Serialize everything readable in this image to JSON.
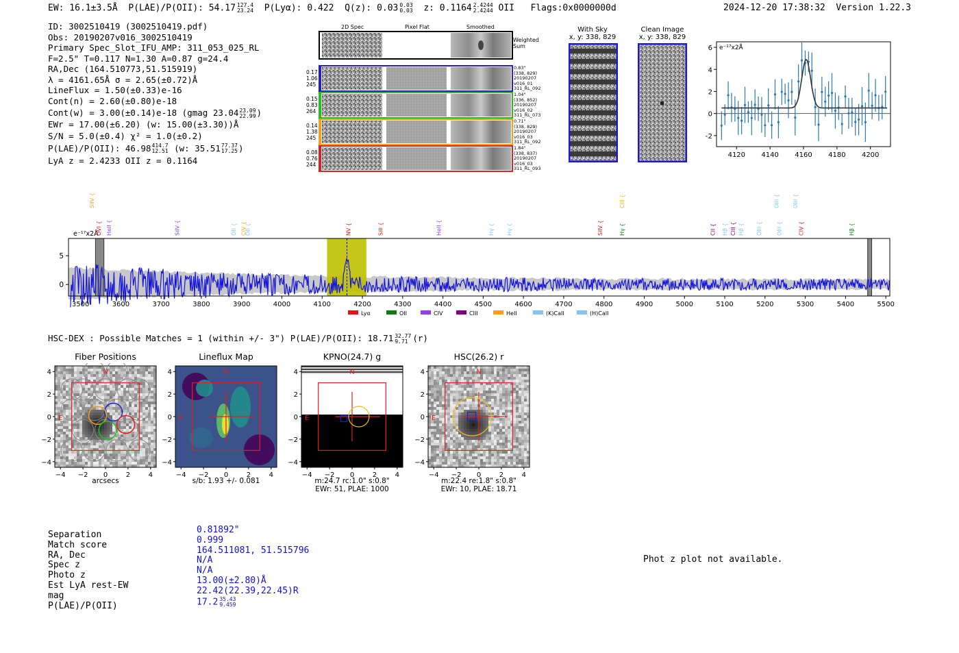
{
  "header": {
    "ew": "EW: 16.1±3.5Å",
    "plae": "P(LAE)/P(OII): 54.17",
    "plae_hi": "127.4",
    "plae_lo": "23.24",
    "plya": "P(Lyα): 0.422",
    "qz": "Q(z): 0.03",
    "qz_hi": "0.03",
    "qz_lo": "0.03",
    "z": "z: 0.1164",
    "z_hi": "2.4244",
    "z_lo": "2.4244",
    "z_tag": "OII",
    "flags": "Flags:0x0000000d",
    "datetime": "2024-12-20 17:38:32",
    "version": "Version 1.22.3"
  },
  "info": {
    "id": "ID: 3002510419 (3002510419.pdf)",
    "obs": "Obs: 20190207v016_3002510419",
    "primary": "Primary Spec_Slot_IFU_AMP: 311_053_025_RL",
    "params": "F=2.5\"  T=0.117  N=1.30  A=0.87  g=24.4",
    "radec": "RA,Dec (164.510773,51.515919)",
    "lambda": "λ = 4161.65Å  σ = 2.65(±0.72)Å",
    "lineflux": "LineFlux = 1.50(±0.33)e-16",
    "contn": "Cont(n) = 2.60(±0.80)e-18",
    "contw": "Cont(w) = 3.00(±0.14)e-18 (gmag 23.04",
    "contw_hi": "23.09",
    "contw_lo": "22.99",
    "contw_end": ")",
    "ewr": "EWr = 17.00(±6.20) (w: 15.00(±3.30))Å",
    "sn": "S/N = 5.0(±0.4)  χ² = 1.0(±0.2)",
    "plae": "P(LAE)/P(OII): 46.98",
    "plae_hi": "414.7",
    "plae_lo": "12.51",
    "plae_w": " (w: 35.51",
    "plae_w_hi": "77.37",
    "plae_w_lo": "17.25",
    "plae_w_end": ")",
    "lyaz": "LyA z = 2.4233  OII z = 0.1164"
  },
  "cutouts": {
    "col_2d": "2D Spec",
    "col_flat": "Pixel Flat",
    "col_smooth": "Smoothed",
    "weighted_sum": "Weighted Sum",
    "fibers": [
      {
        "left": [
          "0.17",
          "1.06",
          "245"
        ],
        "right": [
          "0.83\"",
          "(338, 829)",
          "20190207",
          "v016_01",
          "311_RL_092"
        ],
        "color": "#2020d0"
      },
      {
        "left": [
          "0.15",
          "0.83",
          "264"
        ],
        "right": [
          "1.04\"",
          "(336, 852)",
          "20190207",
          "v016_02",
          "311_RL_073"
        ],
        "color": "#20c020"
      },
      {
        "left": [
          "0.14",
          "1.38",
          "245"
        ],
        "right": [
          "0.71\"",
          "(338, 829)",
          "20190207",
          "v016_03",
          "311_RL_092"
        ],
        "color": "#f0a020"
      },
      {
        "left": [
          "0.08",
          "0.76",
          "244"
        ],
        "right": [
          "1.84\"",
          "(338, 837)",
          "20190207",
          "v016_03",
          "311_RL_093"
        ],
        "color": "#e02020"
      }
    ],
    "with_sky": "With Sky",
    "with_sky_xy": "x, y: 338, 829",
    "clean": "Clean Image",
    "clean_xy": "x, y: 338, 829"
  },
  "zoom_plot": {
    "unit": "e⁻¹⁷x2Å",
    "xticks": [
      "4120",
      "4140",
      "4160",
      "4180",
      "4200"
    ],
    "yticks": [
      "6",
      "4",
      "2",
      "0",
      "−2"
    ]
  },
  "spectrum": {
    "unit": "e⁻¹⁷x2Å",
    "yticks": [
      "5",
      "0"
    ],
    "xticks": [
      "3500",
      "3600",
      "3700",
      "3800",
      "3900",
      "4000",
      "4100",
      "4200",
      "4300",
      "4400",
      "4500",
      "4600",
      "4700",
      "4800",
      "4900",
      "5000",
      "5100",
      "5200",
      "5300",
      "5400",
      "5500"
    ],
    "legend": [
      "Lyα",
      "OII",
      "CIV",
      "CIII",
      "HeII",
      "(K)CaII",
      "(H)CaII"
    ],
    "legend_colors": [
      "#e81010",
      "#107c10",
      "#9040f0",
      "#800080",
      "#ffa020",
      "#80c8f0",
      "#80c8f0"
    ],
    "lines_top": [
      {
        "label": "SiIV",
        "color": "#ffa020"
      },
      {
        "label": "CIII",
        "color": "#ffa020"
      },
      {
        "label": "OIII",
        "color": "#80c8f0"
      },
      {
        "label": "OIII",
        "color": "#80c8f0"
      }
    ],
    "lines_low": [
      {
        "label": "OVI",
        "color": "#e81010"
      },
      {
        "label": "HeII",
        "color": "#9040f0"
      },
      {
        "label": "SiIV",
        "color": "#9040f0"
      },
      {
        "label": "OII",
        "color": "#80c8f0"
      },
      {
        "label": "CIV",
        "color": "#ffa020"
      },
      {
        "label": "OII",
        "color": "#80c8f0"
      },
      {
        "label": "NV",
        "color": "#e81010"
      },
      {
        "label": "SiII",
        "color": "#e81010"
      },
      {
        "label": "HeII",
        "color": "#9040f0"
      },
      {
        "label": "Hγ",
        "color": "#80c8f0"
      },
      {
        "label": "Hγ",
        "color": "#80c8f0"
      },
      {
        "label": "SiIV",
        "color": "#e81010"
      },
      {
        "label": "Hγ",
        "color": "#107c10"
      },
      {
        "label": "CII",
        "color": "#800080"
      },
      {
        "label": "Hβ",
        "color": "#80c8f0"
      },
      {
        "label": "CIII",
        "color": "#800080"
      },
      {
        "label": "Hβ",
        "color": "#80c8f0"
      },
      {
        "label": "OIII",
        "color": "#80c8f0"
      },
      {
        "label": "OIII",
        "color": "#80c8f0"
      },
      {
        "label": "CIV",
        "color": "#e81010"
      },
      {
        "label": "Hβ",
        "color": "#107c10"
      }
    ]
  },
  "hsc": {
    "title": "HSC-DEX : Possible Matches = 1 (within +/- 3\")  P(LAE)/P(OII): 18.71",
    "plae_hi": "32.77",
    "plae_lo": "9.71",
    "band": "(r)",
    "panels": [
      {
        "title": "Fiber Positions",
        "caption1": "arcsecs",
        "caption2": ""
      },
      {
        "title": "Lineflux Map",
        "caption1": "s/b: 1.93 +/- 0.081",
        "caption2": ""
      },
      {
        "title": "KPNO(24.7) g",
        "caption1": "m:24.7 rc:1.0\"  s:0.8\"",
        "caption2": "EWr: 51, PLAE: 1000"
      },
      {
        "title": "HSC(26.2) r",
        "caption1": "m:22.4  re:1.8\"  s:0.8\"",
        "caption2": "EWr: 10, PLAE: 18.71"
      }
    ],
    "axis_ticks": [
      "4",
      "2",
      "0",
      "−2",
      "−4"
    ],
    "x_ticks": [
      "−4",
      "−2",
      "0",
      "2",
      "4"
    ],
    "north": "N",
    "east": "E"
  },
  "stats": {
    "labels": [
      "Separation",
      "Match score",
      "RA, Dec",
      "Spec z",
      "Photo z",
      "Est LyA rest-EW",
      "mag",
      "P(LAE)/P(OII)"
    ],
    "values": [
      "0.81892\"",
      "0.999",
      "164.511081, 51.515796",
      "N/A",
      "N/A",
      "13.00(±2.80)Å",
      "22.42(22.39,22.45)R",
      "17.2"
    ],
    "plae_hi": "35.43",
    "plae_lo": "9.459"
  },
  "photz_msg": "Phot z plot not available."
}
